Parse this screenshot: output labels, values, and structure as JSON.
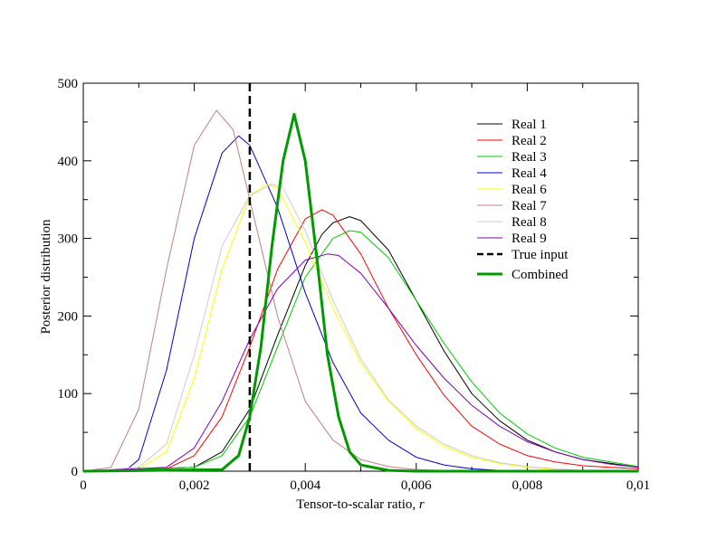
{
  "chart_data": {
    "type": "line",
    "title": "",
    "xlabel_main": "Tensor-to-scalar ratio, ",
    "xlabel_var": "r",
    "ylabel": "Posterior distribution",
    "xlim": [
      0,
      0.01
    ],
    "ylim": [
      0,
      500
    ],
    "grid": false,
    "legend_position": "top-right",
    "x_ticks": [
      0,
      0.002,
      0.004,
      0.006,
      0.008,
      0.01
    ],
    "x_tick_labels": [
      "0",
      "0,002",
      "0,004",
      "0,006",
      "0,008",
      "0,01"
    ],
    "y_ticks": [
      0,
      100,
      200,
      300,
      400,
      500
    ],
    "y_tick_labels": [
      "0",
      "100",
      "200",
      "300",
      "400",
      "500"
    ],
    "series": [
      {
        "name": "Real 1",
        "color": "#000000",
        "style": "solid",
        "width": 1,
        "x": [
          0,
          0.002,
          0.0025,
          0.003,
          0.0035,
          0.004,
          0.0043,
          0.0045,
          0.0048,
          0.005,
          0.0055,
          0.006,
          0.0065,
          0.007,
          0.0075,
          0.008,
          0.0085,
          0.009,
          0.0095,
          0.01
        ],
        "y": [
          0,
          5,
          25,
          80,
          175,
          265,
          305,
          320,
          328,
          323,
          285,
          220,
          155,
          100,
          65,
          40,
          25,
          15,
          10,
          5
        ]
      },
      {
        "name": "Real 2",
        "color": "#ff0000",
        "style": "solid",
        "width": 1,
        "x": [
          0,
          0.0015,
          0.002,
          0.0025,
          0.003,
          0.0035,
          0.004,
          0.0043,
          0.0045,
          0.005,
          0.0055,
          0.006,
          0.0065,
          0.007,
          0.0075,
          0.008,
          0.0085,
          0.009,
          0.0095,
          0.01
        ],
        "y": [
          0,
          3,
          20,
          70,
          160,
          260,
          325,
          337,
          330,
          280,
          210,
          150,
          98,
          58,
          35,
          20,
          12,
          7,
          5,
          3
        ]
      },
      {
        "name": "Real 3",
        "color": "#00cc00",
        "style": "solid",
        "width": 1,
        "x": [
          0,
          0.002,
          0.0025,
          0.003,
          0.0035,
          0.004,
          0.0045,
          0.0048,
          0.005,
          0.0055,
          0.006,
          0.0065,
          0.007,
          0.0075,
          0.008,
          0.0085,
          0.009,
          0.0095,
          0.01
        ],
        "y": [
          0,
          5,
          20,
          70,
          160,
          250,
          300,
          310,
          308,
          275,
          220,
          165,
          115,
          75,
          48,
          30,
          18,
          12,
          6
        ]
      },
      {
        "name": "Real 4",
        "color": "#0000cc",
        "style": "solid",
        "width": 1,
        "x": [
          0,
          0.0008,
          0.001,
          0.0015,
          0.002,
          0.0025,
          0.0028,
          0.003,
          0.0035,
          0.004,
          0.0045,
          0.005,
          0.0055,
          0.006,
          0.0065,
          0.007,
          0.0075,
          0.008
        ],
        "y": [
          0,
          3,
          15,
          130,
          300,
          410,
          432,
          420,
          340,
          230,
          140,
          75,
          40,
          18,
          8,
          3,
          1,
          0
        ]
      },
      {
        "name": "Real 6",
        "color": "#ffff00",
        "style": "solid",
        "width": 1,
        "x": [
          0,
          0.001,
          0.0015,
          0.002,
          0.0025,
          0.003,
          0.0033,
          0.0035,
          0.004,
          0.0045,
          0.005,
          0.0055,
          0.006,
          0.0065,
          0.007,
          0.0075,
          0.008,
          0.0085,
          0.009
        ],
        "y": [
          0,
          3,
          25,
          120,
          260,
          355,
          370,
          365,
          295,
          210,
          140,
          90,
          55,
          32,
          18,
          10,
          5,
          2,
          1
        ]
      },
      {
        "name": "Real 7",
        "color": "#c08080",
        "style": "solid",
        "width": 1,
        "x": [
          0,
          0.0005,
          0.001,
          0.0015,
          0.002,
          0.0024,
          0.0027,
          0.003,
          0.0035,
          0.004,
          0.0045,
          0.005,
          0.0055,
          0.006,
          0.0065,
          0.007
        ],
        "y": [
          0,
          5,
          80,
          260,
          420,
          465,
          440,
          350,
          200,
          90,
          40,
          15,
          6,
          2,
          1,
          0
        ]
      },
      {
        "name": "Real 8",
        "color": "#cccccc",
        "style": "solid",
        "width": 1,
        "x": [
          0,
          0.001,
          0.0015,
          0.002,
          0.0025,
          0.003,
          0.0034,
          0.0036,
          0.004,
          0.0045,
          0.005,
          0.0055,
          0.006,
          0.0065,
          0.007,
          0.0075,
          0.008,
          0.0085,
          0.009
        ],
        "y": [
          0,
          5,
          35,
          150,
          290,
          355,
          370,
          365,
          310,
          220,
          145,
          92,
          58,
          35,
          20,
          11,
          6,
          3,
          1
        ]
      },
      {
        "name": "Real 9",
        "color": "#8000c0",
        "style": "solid",
        "width": 1,
        "x": [
          0,
          0.0015,
          0.002,
          0.0025,
          0.003,
          0.0035,
          0.004,
          0.0044,
          0.0046,
          0.005,
          0.0055,
          0.006,
          0.0065,
          0.007,
          0.0075,
          0.008,
          0.0085,
          0.009,
          0.0095,
          0.01
        ],
        "y": [
          0,
          5,
          30,
          90,
          170,
          235,
          272,
          280,
          278,
          255,
          210,
          162,
          120,
          85,
          58,
          38,
          25,
          15,
          9,
          5
        ]
      },
      {
        "name": "True input",
        "color": "#000000",
        "style": "dashed",
        "width": 2.5,
        "x": [
          0.003,
          0.003
        ],
        "y": [
          0,
          500
        ]
      },
      {
        "name": "Combined",
        "color": "#009900",
        "style": "solid",
        "width": 3,
        "x": [
          0,
          0.0025,
          0.0028,
          0.003,
          0.0032,
          0.0034,
          0.0036,
          0.0038,
          0.004,
          0.0042,
          0.0044,
          0.0046,
          0.0048,
          0.005,
          0.0055,
          0.006,
          0.01
        ],
        "y": [
          0,
          2,
          20,
          70,
          160,
          290,
          400,
          460,
          400,
          280,
          150,
          70,
          25,
          8,
          1,
          0,
          0
        ]
      }
    ]
  }
}
